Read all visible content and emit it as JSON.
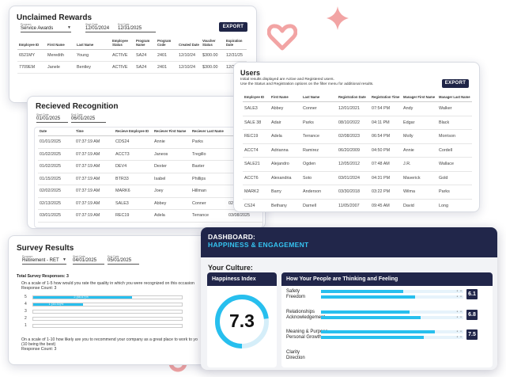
{
  "colors": {
    "accent": "#27bfee",
    "navy": "#21264a",
    "decor": "#f2a4a4"
  },
  "unclaimed": {
    "title": "Unclaimed Rewards",
    "program_label": "Program",
    "program_value": "Service Awards",
    "start_label": "Start Date",
    "start_value": "12/01/2024",
    "end_label": "End Date",
    "end_value": "12/31/2025",
    "export": "EXPORT",
    "columns": [
      "Employee ID",
      "First Name",
      "Last Name",
      "Employee Status",
      "Program Name",
      "Program Code",
      "Created Date",
      "Voucher Status",
      "Expiration Date"
    ],
    "rows": [
      [
        "6521MY",
        "Meredith",
        "Young",
        "ACTIVE",
        "SA24",
        "2401",
        "12/10/24",
        "$300.00",
        "12/31/25"
      ],
      [
        "7709EM",
        "Janele",
        "Bentley",
        "ACTIVE",
        "SA24",
        "2401",
        "12/10/24",
        "$300.00",
        "12/31/25"
      ]
    ]
  },
  "users": {
    "title": "Users",
    "desc1": "Initial results displayed are Active and Registered users.",
    "desc2": "Use the Status and Registration options on the filter menu for additional results.",
    "export": "EXPORT",
    "columns": [
      "Employee ID",
      "First Name",
      "Last Name",
      "Registration Date",
      "Registration Time",
      "Manager First Name",
      "Manager Last Name"
    ],
    "rows": [
      [
        "SALE3",
        "Abbey",
        "Conner",
        "12/01/2021",
        "07:54 PM",
        "Andy",
        "Walker"
      ],
      [
        "SALE 38",
        "Adair",
        "Parks",
        "08/10/2022",
        "04:11 PM",
        "Edgar",
        "Black"
      ],
      [
        "REC19",
        "Adela",
        "Terrance",
        "02/08/2023",
        "06:54 PM",
        "Molly",
        "Morrison"
      ],
      [
        "ACCT4",
        "Adrianna",
        "Ramirez",
        "06/20/2009",
        "04:50 PM",
        "Annie",
        "Cordell"
      ],
      [
        "SALE21",
        "Alejandro",
        "Ogden",
        "12/05/2012",
        "07:48 AM",
        "J.R.",
        "Wallace"
      ],
      [
        "ACCT6",
        "Alexandria",
        "Soto",
        "03/01/2024",
        "04:31 PM",
        "Maverick",
        "Gold"
      ],
      [
        "MARK2",
        "Barry",
        "Anderson",
        "03/30/2018",
        "03:22 PM",
        "Wilma",
        "Parks"
      ],
      [
        "CS24",
        "Bethany",
        "Darnell",
        "11/05/2007",
        "09:45 AM",
        "David",
        "Long"
      ]
    ]
  },
  "recognition": {
    "title": "Recieved Recognition",
    "start_label": "Start Date",
    "start_value": "01/01/2025",
    "end_label": "End Date",
    "end_value": "06/01/2025",
    "columns": [
      "Date",
      "Time",
      "Recieve Employee ID",
      "Reciever First Name",
      "Reciever Last Name",
      ""
    ],
    "rows": [
      [
        "01/01/2025",
        "07:37:19 AM",
        "CDS24",
        "Annie",
        "Parks",
        ""
      ],
      [
        "01/02/2025",
        "07:37:19 AM",
        "ACCT3",
        "Janeos",
        "Tregillo",
        ""
      ],
      [
        "01/02/2025",
        "07:37:19 AM",
        "DEV4",
        "Dexter",
        "Baxter",
        ""
      ],
      [
        "01/15/2025",
        "07:37:19 AM",
        "BTR33",
        "Isabel",
        "Phillips",
        ""
      ],
      [
        "02/02/2025",
        "07:37:19 AM",
        "MARK6",
        "Joey",
        "Hillman",
        ""
      ],
      [
        "02/13/2025",
        "07:37:19 AM",
        "SALE3",
        "Abbey",
        "Conner",
        "02/13/2025"
      ],
      [
        "03/01/2025",
        "07:37:19 AM",
        "REC19",
        "Adela",
        "Terrance",
        "03/08/2025"
      ]
    ]
  },
  "survey": {
    "title": "Survey Results",
    "program_label": "Program",
    "program_value": "Retirement - RET",
    "start_label": "Start Date",
    "start_value": "04/01/2025",
    "end_label": "End Date",
    "end_value": "05/01/2025",
    "total": "Total Survey Responses: 3",
    "q1": "On a scale of 1-5 how would you rate the quality in which you were recognized on this occasion",
    "q1_count": "Response Count: 3",
    "bars": [
      {
        "label": "5",
        "text": "2 (66.67)%",
        "fraction": 0.6667
      },
      {
        "label": "4",
        "text": "1 (33.33)%",
        "fraction": 0.3333
      },
      {
        "label": "3",
        "text": "",
        "fraction": 0
      },
      {
        "label": "2",
        "text": "",
        "fraction": 0
      },
      {
        "label": "1",
        "text": "",
        "fraction": 0
      }
    ],
    "q2": "On a scale of 1-10 how likely are you to recommend your company as a great place to work to yo",
    "q2_sub": "(10 being the best)",
    "q2_count": "Response Count: 3"
  },
  "dashboard": {
    "title1": "DASHBOARD:",
    "title2": "HAPPINESS & ENGAGEMENT",
    "culture": "Your Culture:",
    "happiness_title": "Happiness Index",
    "happiness_value": "7.3",
    "happiness_fraction": 0.73,
    "people_title": "How Your People are Thinking and Feeling",
    "groups": [
      {
        "labels": [
          "Safety",
          "Freedom"
        ],
        "score": "6.1",
        "fills": [
          0.58,
          0.66
        ]
      },
      {
        "labels": [
          "Relationships",
          "Acknowledgement"
        ],
        "score": "6.8",
        "fills": [
          0.62,
          0.7
        ]
      },
      {
        "labels": [
          "Meaning & Purpose",
          "Personal Growth"
        ],
        "score": "7.5",
        "fills": [
          0.8,
          0.72
        ]
      },
      {
        "labels": [
          "Clarity",
          "Direction"
        ],
        "score": "",
        "fills": []
      }
    ]
  }
}
